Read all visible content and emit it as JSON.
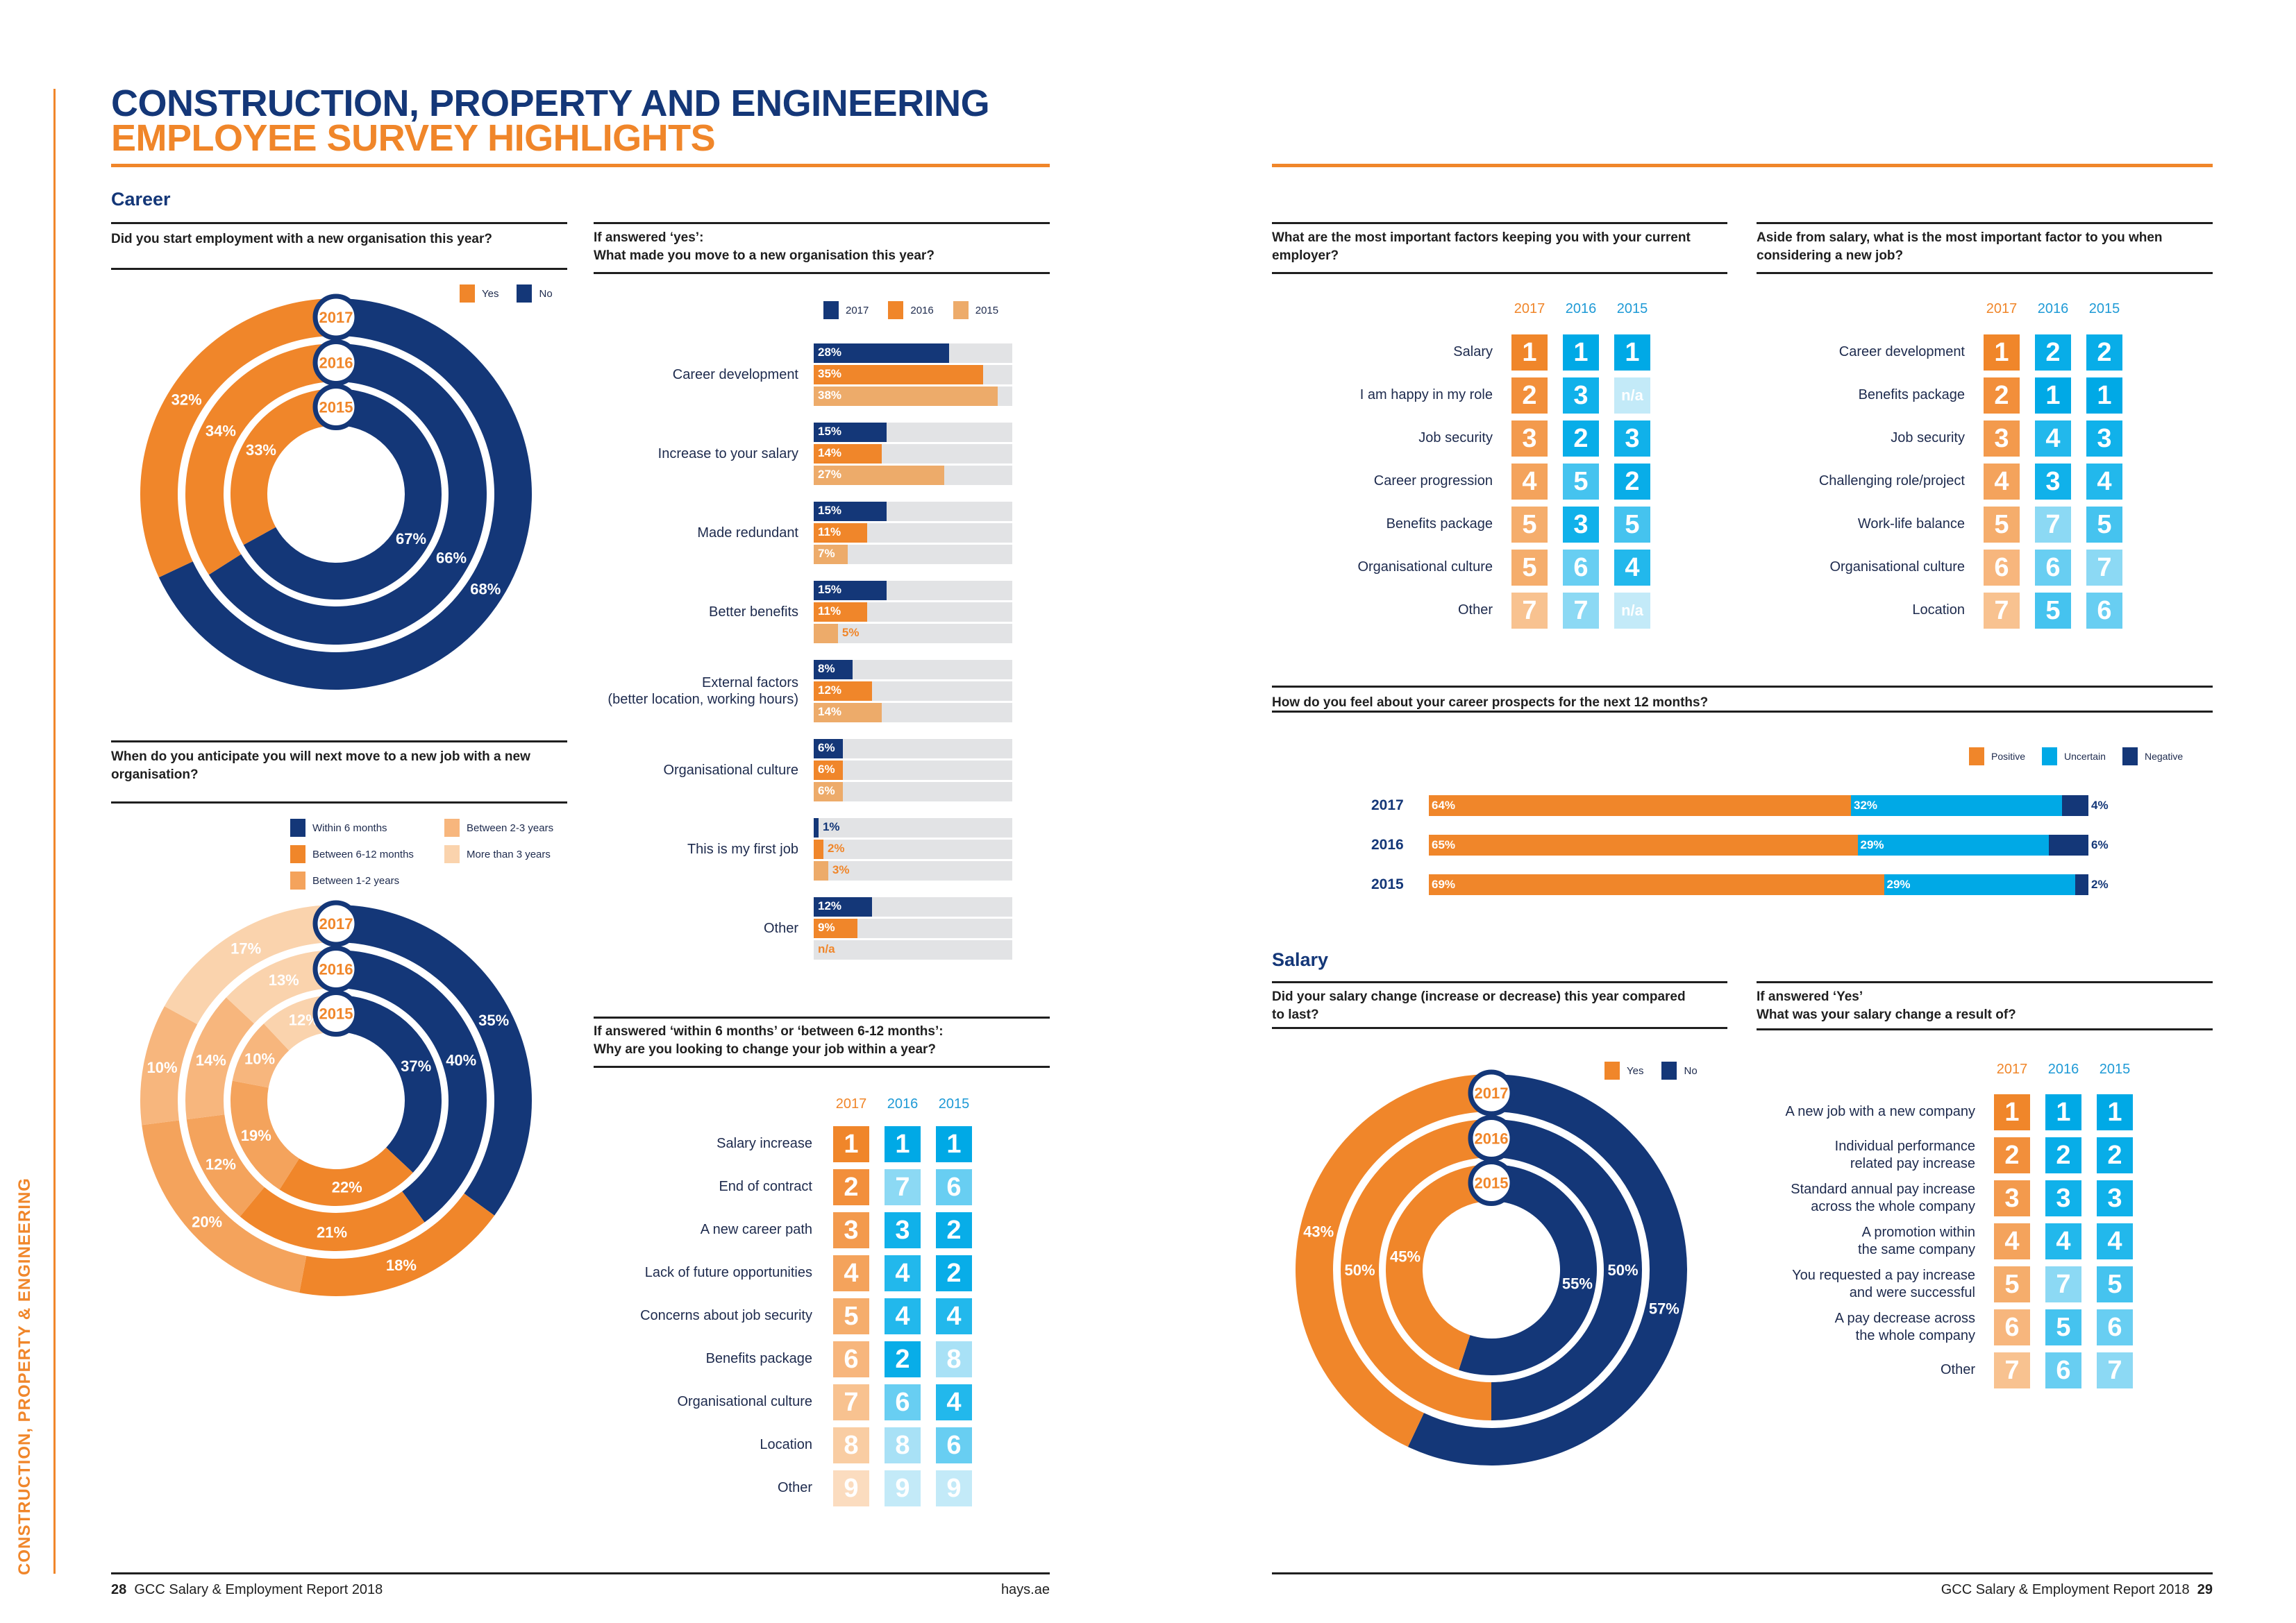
{
  "header": {
    "title_line1": "CONSTRUCTION, PROPERTY AND ENGINEERING",
    "title_line2": "EMPLOYEE SURVEY HIGHLIGHTS"
  },
  "sidebar_text": "CONSTRUCTION, PROPERTY & ENGINEERING",
  "colors": {
    "navy": "#143778",
    "orange": "#f0862a",
    "orange_mid": "#f4a35c",
    "orange_light": "#f7b67d",
    "orange_pale": "#fad3ad",
    "cyan": "#00a9e6",
    "track_gray": "#e2e3e5"
  },
  "sections": {
    "career": "Career",
    "salary": "Salary"
  },
  "footer": {
    "left_page_number": "28",
    "left_report": "GCC Salary & Employment Report 2018",
    "left_site": "hays.ae",
    "right_report": "GCC Salary & Employment Report 2018",
    "right_page_number": "29"
  },
  "years": [
    "2017",
    "2016",
    "2015"
  ],
  "chart_data": [
    {
      "id": "new_org",
      "type": "pie",
      "variant": "concentric-donut",
      "title": "Did you start employment with a new organisation this year?",
      "legend": [
        "Yes",
        "No"
      ],
      "rings": [
        {
          "year": "2017",
          "values": [
            32,
            68
          ]
        },
        {
          "year": "2016",
          "values": [
            34,
            66
          ]
        },
        {
          "year": "2015",
          "values": [
            33,
            67
          ]
        }
      ]
    },
    {
      "id": "why_move",
      "type": "bar",
      "orientation": "horizontal",
      "title_line1": "If answered ‘yes’:",
      "title_line2": "What made you move to a new organisation this year?",
      "legend": [
        "2017",
        "2016",
        "2015"
      ],
      "categories": [
        "Career development",
        "Increase to your salary",
        "Made redundant",
        "Better benefits",
        "External factors\n(better location, working hours)",
        "Organisational culture",
        "This is my first job",
        "Other"
      ],
      "series": [
        {
          "name": "2017",
          "values": [
            28,
            15,
            15,
            15,
            8,
            6,
            1,
            12
          ]
        },
        {
          "name": "2016",
          "values": [
            35,
            14,
            11,
            11,
            12,
            6,
            2,
            9
          ]
        },
        {
          "name": "2015",
          "values": [
            38,
            27,
            7,
            5,
            14,
            6,
            3,
            null
          ]
        }
      ],
      "labels": [
        [
          "28%",
          "35%",
          "38%"
        ],
        [
          "15%",
          "14%",
          "27%"
        ],
        [
          "15%",
          "11%",
          "7%"
        ],
        [
          "15%",
          "11%",
          "5%"
        ],
        [
          "8%",
          "12%",
          "14%"
        ],
        [
          "6%",
          "6%",
          "6%"
        ],
        [
          "1%",
          "2%",
          "3%"
        ],
        [
          "12%",
          "9%",
          "n/a"
        ]
      ]
    },
    {
      "id": "next_move",
      "type": "pie",
      "variant": "concentric-donut",
      "title": "When do you anticipate you will next move to a new job with a new organisation?",
      "legend": [
        "Within 6 months",
        "Between 6-12 months",
        "Between 1-2 years",
        "Between 2-3 years",
        "More than 3 years"
      ],
      "rings": [
        {
          "year": "2017",
          "values": [
            35,
            18,
            20,
            10,
            17
          ]
        },
        {
          "year": "2016",
          "values": [
            40,
            21,
            12,
            14,
            13
          ]
        },
        {
          "year": "2015",
          "values": [
            37,
            22,
            19,
            10,
            12
          ]
        }
      ]
    },
    {
      "id": "why_change",
      "type": "table",
      "title_line1": "If answered ‘within 6 months’ or ‘between 6-12 months’:",
      "title_line2": "Why are you looking to change your job within a year?",
      "columns": [
        "2017",
        "2016",
        "2015"
      ],
      "rows": [
        {
          "label": "Salary increase",
          "ranks": [
            "1",
            "1",
            "1"
          ]
        },
        {
          "label": "End of contract",
          "ranks": [
            "2",
            "7",
            "6"
          ]
        },
        {
          "label": "A new career path",
          "ranks": [
            "3",
            "3",
            "2"
          ]
        },
        {
          "label": "Lack of future opportunities",
          "ranks": [
            "4",
            "4",
            "2"
          ]
        },
        {
          "label": "Concerns about job security",
          "ranks": [
            "5",
            "4",
            "4"
          ]
        },
        {
          "label": "Benefits package",
          "ranks": [
            "6",
            "2",
            "8"
          ]
        },
        {
          "label": "Organisational culture",
          "ranks": [
            "7",
            "6",
            "4"
          ]
        },
        {
          "label": "Location",
          "ranks": [
            "8",
            "8",
            "6"
          ]
        },
        {
          "label": "Other",
          "ranks": [
            "9",
            "9",
            "9"
          ]
        }
      ]
    },
    {
      "id": "keep_factors",
      "type": "table",
      "title": "What are the most important factors keeping you with your current employer?",
      "columns": [
        "2017",
        "2016",
        "2015"
      ],
      "rows": [
        {
          "label": "Salary",
          "ranks": [
            "1",
            "1",
            "1"
          ]
        },
        {
          "label": "I am happy in my role",
          "ranks": [
            "2",
            "3",
            "n/a"
          ]
        },
        {
          "label": "Job security",
          "ranks": [
            "3",
            "2",
            "3"
          ]
        },
        {
          "label": "Career progression",
          "ranks": [
            "4",
            "5",
            "2"
          ]
        },
        {
          "label": "Benefits package",
          "ranks": [
            "5",
            "3",
            "5"
          ]
        },
        {
          "label": "Organisational culture",
          "ranks": [
            "5",
            "6",
            "4"
          ]
        },
        {
          "label": "Other",
          "ranks": [
            "7",
            "7",
            "n/a"
          ]
        }
      ]
    },
    {
      "id": "new_job_factor",
      "type": "table",
      "title": "Aside from salary, what is the most important factor to you when considering a new job?",
      "columns": [
        "2017",
        "2016",
        "2015"
      ],
      "rows": [
        {
          "label": "Career development",
          "ranks": [
            "1",
            "2",
            "2"
          ]
        },
        {
          "label": "Benefits package",
          "ranks": [
            "2",
            "1",
            "1"
          ]
        },
        {
          "label": "Job security",
          "ranks": [
            "3",
            "4",
            "3"
          ]
        },
        {
          "label": "Challenging role/project",
          "ranks": [
            "4",
            "3",
            "4"
          ]
        },
        {
          "label": "Work-life balance",
          "ranks": [
            "5",
            "7",
            "5"
          ]
        },
        {
          "label": "Organisational culture",
          "ranks": [
            "6",
            "6",
            "7"
          ]
        },
        {
          "label": "Location",
          "ranks": [
            "7",
            "5",
            "6"
          ]
        }
      ]
    },
    {
      "id": "prospects",
      "type": "bar",
      "orientation": "horizontal-stacked",
      "title": "How do you feel about your career prospects for the next 12 months?",
      "legend": [
        "Positive",
        "Uncertain",
        "Negative"
      ],
      "categories": [
        "2017",
        "2016",
        "2015"
      ],
      "series": [
        {
          "name": "Positive",
          "values": [
            64,
            65,
            69
          ]
        },
        {
          "name": "Uncertain",
          "values": [
            32,
            29,
            29
          ]
        },
        {
          "name": "Negative",
          "values": [
            4,
            6,
            2
          ]
        }
      ]
    },
    {
      "id": "salary_change",
      "type": "pie",
      "variant": "concentric-donut",
      "title": "Did your salary change (increase or decrease) this year compared to last?",
      "legend": [
        "Yes",
        "No"
      ],
      "rings": [
        {
          "year": "2017",
          "values": [
            43,
            57
          ]
        },
        {
          "year": "2016",
          "values": [
            50,
            50
          ]
        },
        {
          "year": "2015",
          "values": [
            45,
            55
          ]
        }
      ]
    },
    {
      "id": "salary_reason",
      "type": "table",
      "title_line1": "If answered ‘Yes’",
      "title_line2": "What was your salary change a result of?",
      "columns": [
        "2017",
        "2016",
        "2015"
      ],
      "rows": [
        {
          "label": "A new job with a new company",
          "ranks": [
            "1",
            "1",
            "1"
          ]
        },
        {
          "label": "Individual performance\nrelated pay increase",
          "ranks": [
            "2",
            "2",
            "2"
          ]
        },
        {
          "label": "Standard annual pay increase\nacross the whole company",
          "ranks": [
            "3",
            "3",
            "3"
          ]
        },
        {
          "label": "A promotion within\nthe same company",
          "ranks": [
            "4",
            "4",
            "4"
          ]
        },
        {
          "label": "You requested a pay increase\nand were successful",
          "ranks": [
            "5",
            "7",
            "5"
          ]
        },
        {
          "label": "A pay decrease across\nthe whole company",
          "ranks": [
            "6",
            "5",
            "6"
          ]
        },
        {
          "label": "Other",
          "ranks": [
            "7",
            "6",
            "7"
          ]
        }
      ]
    }
  ]
}
